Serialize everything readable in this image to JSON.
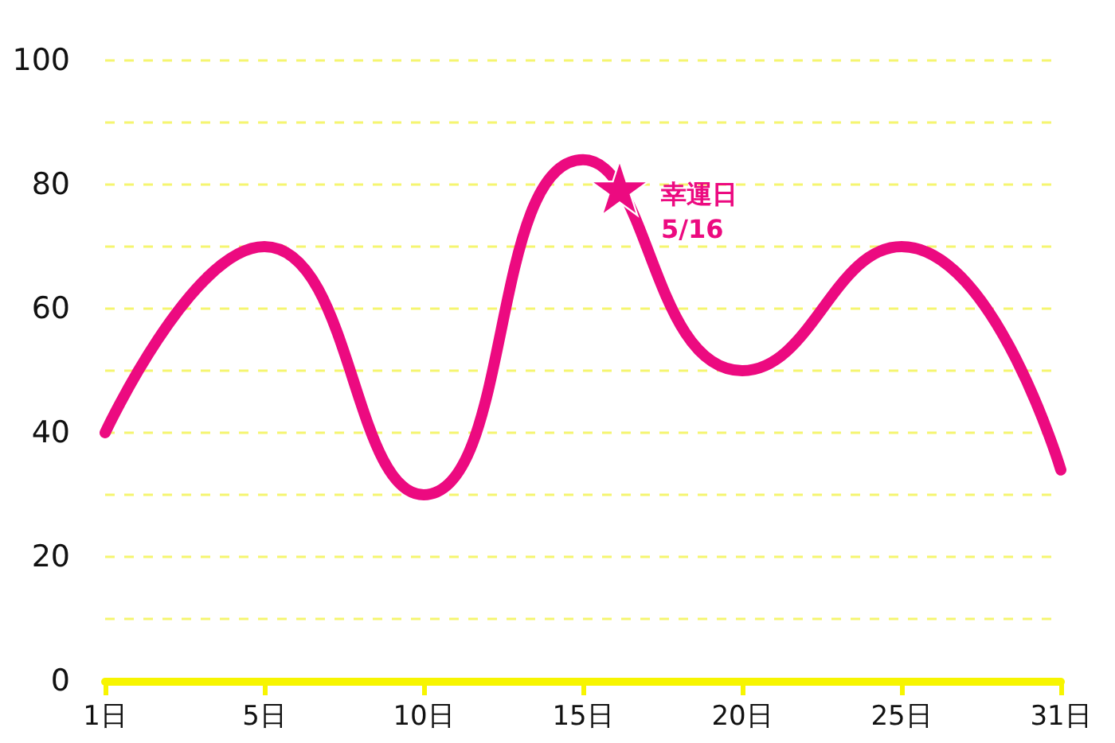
{
  "chart_data": {
    "type": "line",
    "categories": [
      "1日",
      "5日",
      "10日",
      "15日",
      "20日",
      "25日",
      "31日"
    ],
    "series": [
      {
        "color": "#ec0a80",
        "values": [
          40,
          70,
          30,
          84,
          50,
          70,
          34
        ]
      }
    ],
    "ylim": [
      0,
      100
    ],
    "yticks": [
      0,
      {
        "value": 10,
        "label": null
      },
      20,
      {
        "value": 30,
        "label": null
      },
      40,
      {
        "value": 50,
        "label": null
      },
      60,
      {
        "value": 70,
        "label": null
      },
      80,
      {
        "value": 90,
        "label": null
      },
      100
    ],
    "grid": "y",
    "marker": "none",
    "line_style": "solid",
    "annotations": [
      "幸運日\n5/16"
    ]
  }
}
